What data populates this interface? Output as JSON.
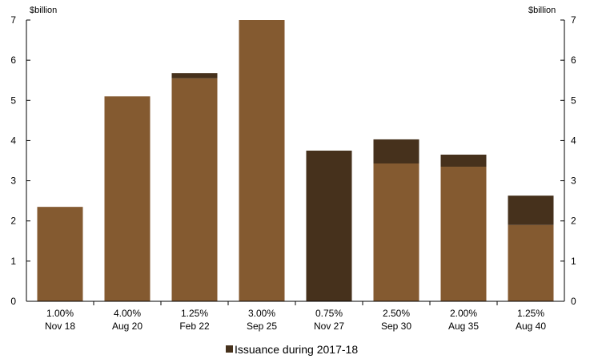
{
  "chart_data": {
    "type": "bar",
    "stacked": true,
    "y_unit_left": "$billion",
    "y_unit_right": "$billion",
    "ylim": [
      0,
      7
    ],
    "yticks": [
      0,
      1,
      2,
      3,
      4,
      5,
      6,
      7
    ],
    "grid": false,
    "legend_position": "bottom-center",
    "categories": [
      [
        "1.00%",
        "Nov 18"
      ],
      [
        "4.00%",
        "Aug 20"
      ],
      [
        "1.25%",
        "Feb 22"
      ],
      [
        "3.00%",
        "Sep 25"
      ],
      [
        "0.75%",
        "Nov 27"
      ],
      [
        "2.50%",
        "Sep 30"
      ],
      [
        "2.00%",
        "Aug 35"
      ],
      [
        "1.25%",
        "Aug 40"
      ]
    ],
    "series": [
      {
        "values": [
          2.35,
          5.1,
          5.55,
          7.0,
          0,
          3.43,
          3.35,
          1.9
        ],
        "color": "#845a30"
      },
      {
        "name": "Issuance during 2017-18",
        "values": [
          0,
          0,
          0.13,
          0,
          3.75,
          0.6,
          0.3,
          0.73
        ],
        "color": "#46311c"
      }
    ]
  }
}
